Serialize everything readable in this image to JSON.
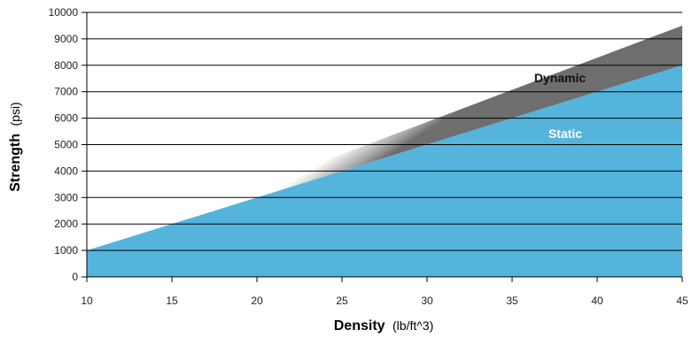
{
  "chart_data": {
    "type": "area",
    "x": [
      10,
      45
    ],
    "series": [
      {
        "name": "Static",
        "values": [
          1000,
          8000
        ]
      },
      {
        "name": "Dynamic",
        "values": [
          1000,
          9500
        ]
      }
    ],
    "band_labels": {
      "dynamic": "Dynamic",
      "static": "Static"
    },
    "xlabel": {
      "bold": "Density",
      "unit": "(lb/ft^3)"
    },
    "ylabel": {
      "bold": "Strength",
      "unit": "(psi)"
    },
    "xlim": [
      10,
      45
    ],
    "ylim": [
      0,
      10000
    ],
    "xticks": [
      10,
      15,
      20,
      25,
      30,
      35,
      40,
      45
    ],
    "yticks": [
      0,
      1000,
      2000,
      3000,
      4000,
      5000,
      6000,
      7000,
      8000,
      9000,
      10000
    ],
    "grid": "horizontal",
    "colors": {
      "static_fill": "#55b4dc",
      "dynamic_band": "#8a8a8a",
      "static_label": "#ffffff",
      "dynamic_label": "#111111"
    }
  }
}
